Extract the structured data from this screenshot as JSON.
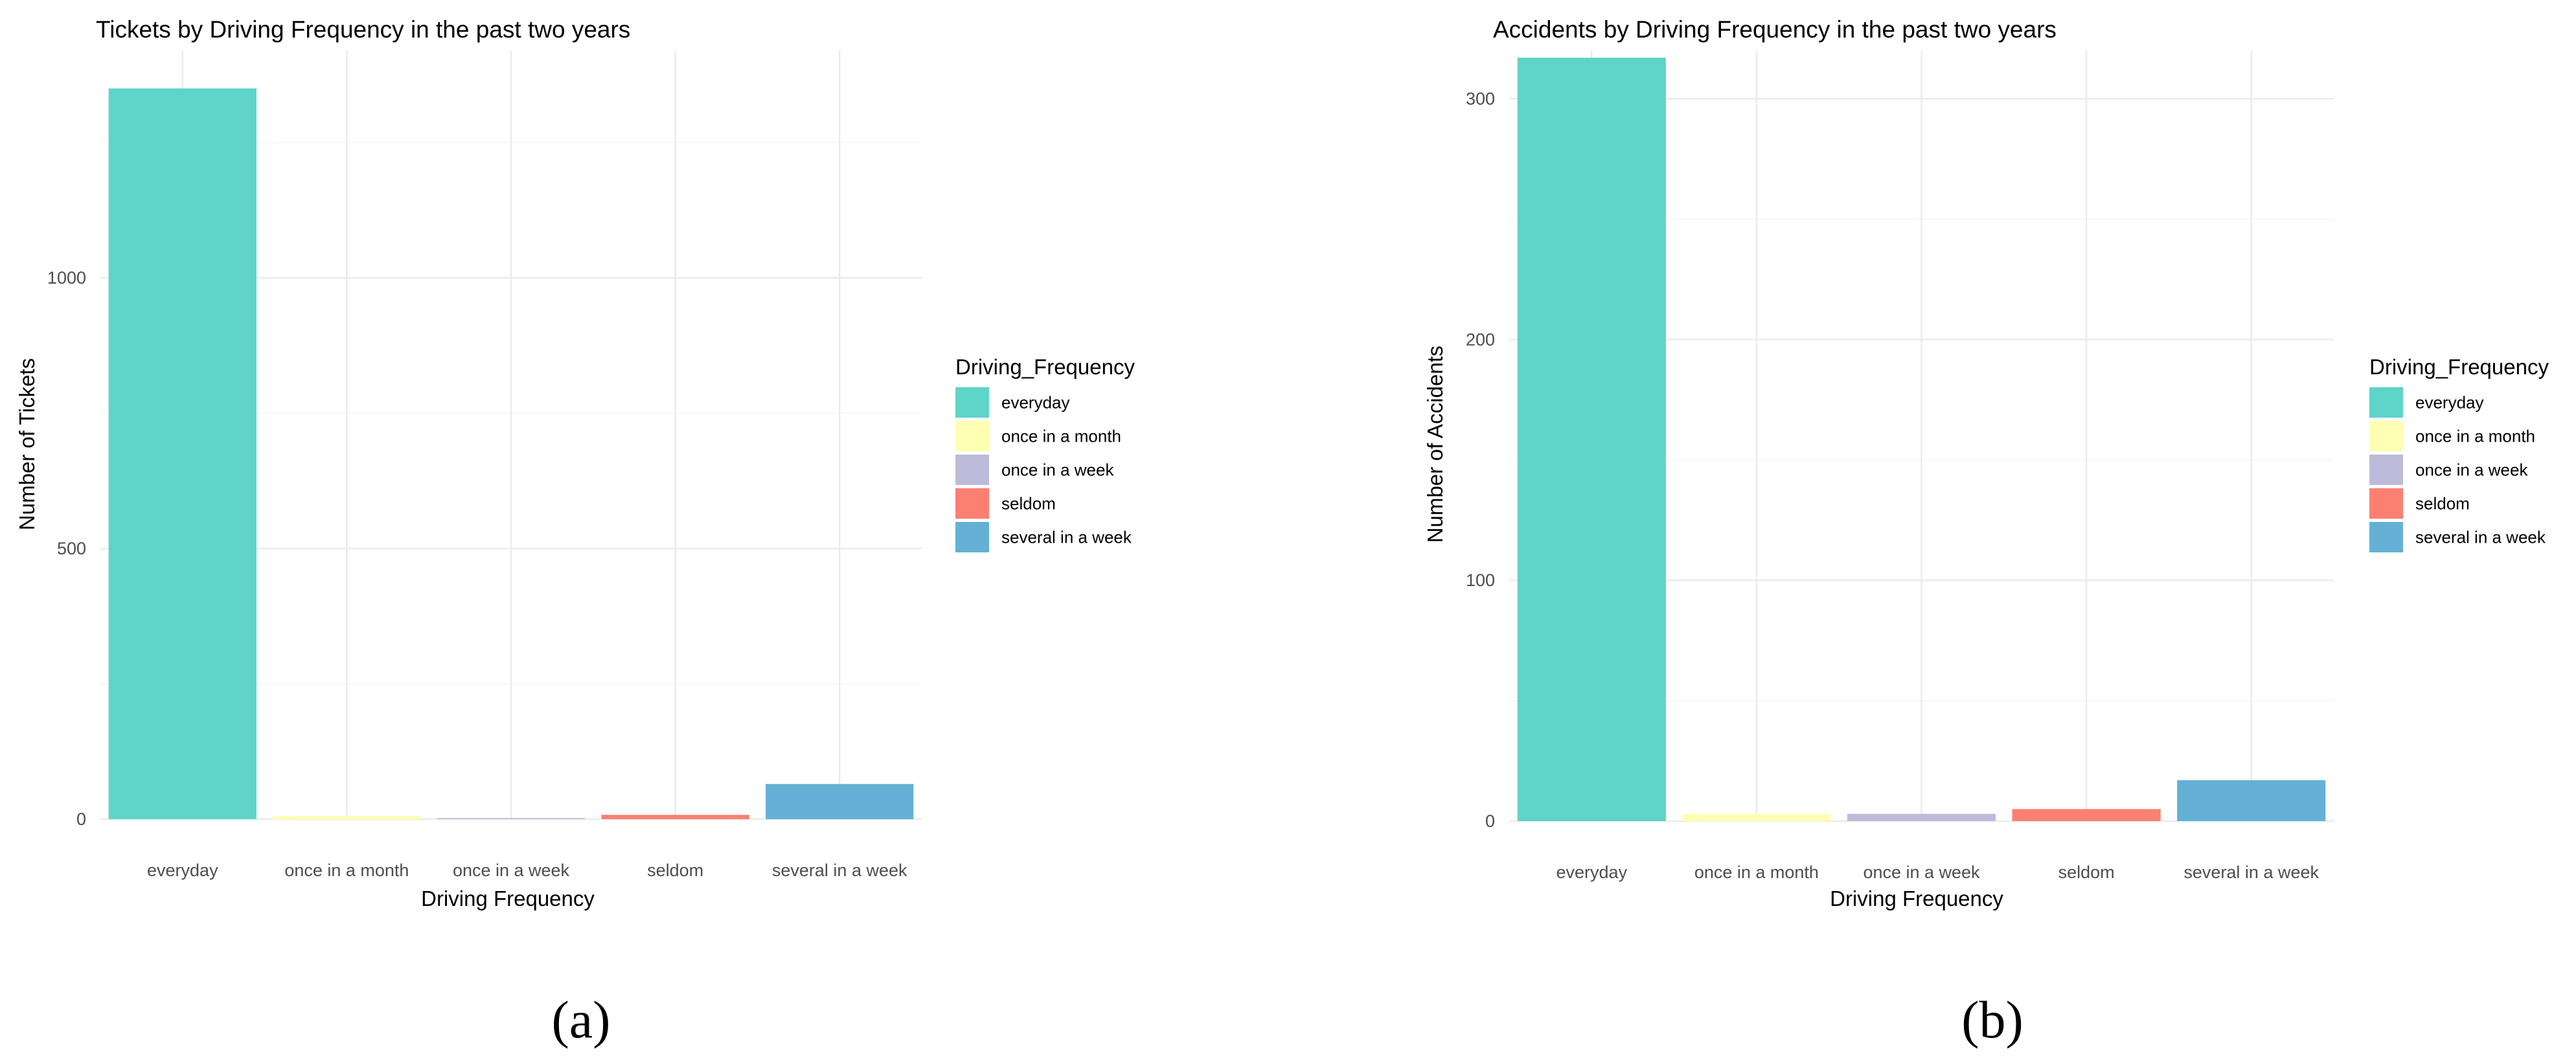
{
  "chart_data": [
    {
      "type": "bar",
      "title": "Tickets by Driving Frequency in the past two years",
      "xlabel": "Driving Frequency",
      "ylabel": "Number of Tickets",
      "categories": [
        "everyday",
        "once in a month",
        "once in a week",
        "seldom",
        "several in a week"
      ],
      "values": [
        1350,
        6,
        2,
        8,
        65
      ],
      "colors": [
        "#5fd4c8",
        "#ffffb3",
        "#bebada",
        "#fb8072",
        "#64b1d5"
      ],
      "yticks": [
        0,
        500,
        1000
      ],
      "ylim": [
        0,
        1420
      ],
      "grid": true,
      "legend": {
        "title": "Driving_Frequency",
        "position": "right",
        "entries": [
          "everyday",
          "once in a month",
          "once in a week",
          "seldom",
          "several in a week"
        ]
      },
      "caption": "(a)"
    },
    {
      "type": "bar",
      "title": "Accidents by Driving Frequency in the past two years",
      "xlabel": "Driving Frequency",
      "ylabel": "Number of Accidents",
      "categories": [
        "everyday",
        "once in a month",
        "once in a week",
        "seldom",
        "several in a week"
      ],
      "values": [
        317,
        3,
        3,
        5,
        17
      ],
      "colors": [
        "#5fd4c8",
        "#ffffb3",
        "#bebada",
        "#fb8072",
        "#64b1d5"
      ],
      "yticks": [
        0,
        100,
        200,
        300
      ],
      "ylim": [
        0,
        320
      ],
      "grid": true,
      "legend": {
        "title": "Driving_Frequency",
        "position": "right",
        "entries": [
          "everyday",
          "once in a month",
          "once in a week",
          "seldom",
          "several in a week"
        ]
      },
      "caption": "(b)"
    }
  ]
}
